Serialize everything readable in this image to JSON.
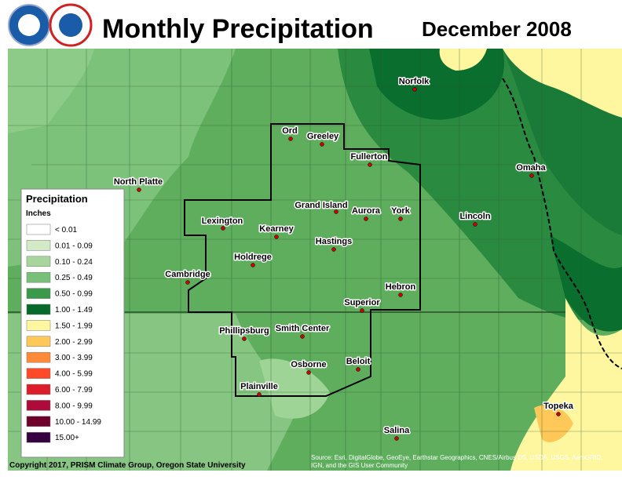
{
  "header": {
    "title": "Monthly Precipitation",
    "date": "December 2008"
  },
  "legend": {
    "title": "Precipitation",
    "units": "Inches",
    "items": [
      {
        "label": "< 0.01",
        "color": "#ffffff"
      },
      {
        "label": "0.01 - 0.09",
        "color": "#d2ebc6"
      },
      {
        "label": "0.10 - 0.24",
        "color": "#a6d69c"
      },
      {
        "label": "0.25 - 0.49",
        "color": "#78c078"
      },
      {
        "label": "0.50 - 0.99",
        "color": "#3a9a4a"
      },
      {
        "label": "1.00 - 1.49",
        "color": "#086a2a"
      },
      {
        "label": "1.50 - 1.99",
        "color": "#fff6a0"
      },
      {
        "label": "2.00 - 2.99",
        "color": "#ffc858"
      },
      {
        "label": "3.00 - 3.99",
        "color": "#ff8a3a"
      },
      {
        "label": "4.00 - 5.99",
        "color": "#ff4a2a"
      },
      {
        "label": "6.00 - 7.99",
        "color": "#dc1e2a"
      },
      {
        "label": "8.00 - 9.99",
        "color": "#ae0a3a"
      },
      {
        "label": "10.00 - 14.99",
        "color": "#6e002a"
      },
      {
        "label": "15.00+",
        "color": "#360040"
      }
    ]
  },
  "cities": [
    "Norfolk",
    "Ord",
    "Greeley",
    "Fullerton",
    "North Platte",
    "Omaha",
    "Grand Island",
    "Aurora",
    "York",
    "Lincoln",
    "Lexington",
    "Kearney",
    "Hastings",
    "Holdrege",
    "Cambridge",
    "Hebron",
    "Superior",
    "Phillipsburg",
    "Smith Center",
    "Beloit",
    "Osborne",
    "Plainville",
    "Salina",
    "Topeka"
  ],
  "footer": {
    "copyright": "Copyright 2017, PRISM Climate Group, Oregon State University",
    "source": [
      "Source: Esri, DigitalGlobe, GeoEye, Earthstar Geographics, CNES/Airbus DS, USDA, USGS, AeroGRID,",
      "IGN, and the GIS User Community"
    ]
  }
}
